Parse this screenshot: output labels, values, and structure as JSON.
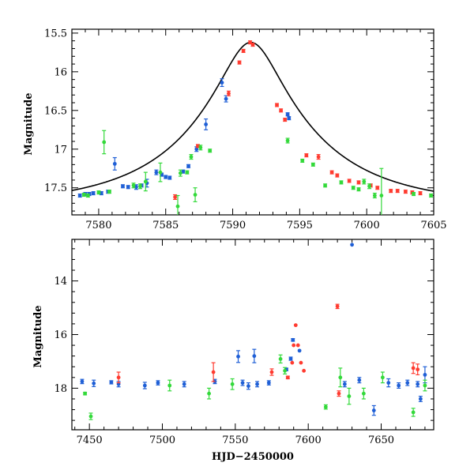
{
  "chart_data": [
    {
      "type": "scatter",
      "title": "",
      "xlabel": "",
      "ylabel": "Magnitude",
      "xlim": [
        7578,
        7605
      ],
      "ylim": [
        17.85,
        15.45
      ],
      "y_inverted": true,
      "xticks": [
        7580,
        7585,
        7590,
        7595,
        7600,
        7605
      ],
      "yticks": [
        15.5,
        16,
        16.5,
        17,
        17.5
      ],
      "xtick_labels": [
        "7580",
        "7585",
        "7590",
        "7595",
        "7600",
        "7605"
      ],
      "ytick_labels": [
        "15.5",
        "16",
        "16.5",
        "17",
        "17.5"
      ],
      "grid": false,
      "series": [
        {
          "color": "#1f5fd6",
          "points": [
            [
              7578.6,
              17.6,
              0.02
            ],
            [
              7579.0,
              17.58,
              0.02
            ],
            [
              7579.3,
              17.58,
              0.02
            ],
            [
              7579.6,
              17.57,
              0.02
            ],
            [
              7580.2,
              17.57,
              0.02
            ],
            [
              7580.7,
              17.55,
              0.02
            ],
            [
              7581.2,
              17.19,
              0.08
            ],
            [
              7581.8,
              17.48,
              0.02
            ],
            [
              7582.2,
              17.49,
              0.02
            ],
            [
              7582.8,
              17.49,
              0.03
            ],
            [
              7583.2,
              17.47,
              0.02
            ],
            [
              7583.6,
              17.44,
              0.05
            ],
            [
              7584.3,
              17.3,
              0.03
            ],
            [
              7584.7,
              17.33,
              0.02
            ],
            [
              7585.0,
              17.36,
              0.02
            ],
            [
              7585.3,
              17.37,
              0.02
            ],
            [
              7586.3,
              17.29,
              0.02
            ],
            [
              7586.7,
              17.22,
              0.02
            ],
            [
              7587.3,
              17.0,
              0.03
            ],
            [
              7588.0,
              16.68,
              0.07
            ],
            [
              7589.2,
              16.14,
              0.05
            ],
            [
              7589.5,
              16.35,
              0.04
            ],
            [
              7594.1,
              16.55,
              0.02
            ],
            [
              7594.2,
              16.6,
              0.02
            ]
          ]
        },
        {
          "color": "#ff3b30",
          "points": [
            [
              7585.7,
              17.62,
              0.03
            ],
            [
              7587.4,
              16.96,
              0.02
            ],
            [
              7589.7,
              16.28,
              0.03
            ],
            [
              7590.5,
              15.88,
              0.02
            ],
            [
              7590.8,
              15.73,
              0.02
            ],
            [
              7591.3,
              15.62,
              0.02
            ],
            [
              7591.5,
              15.65,
              0.02
            ],
            [
              7593.3,
              16.43,
              0.02
            ],
            [
              7593.6,
              16.5,
              0.02
            ],
            [
              7593.9,
              16.62,
              0.02
            ],
            [
              7595.5,
              17.08,
              0.02
            ],
            [
              7596.4,
              17.1,
              0.03
            ],
            [
              7597.4,
              17.3,
              0.02
            ],
            [
              7597.8,
              17.34,
              0.02
            ],
            [
              7598.7,
              17.41,
              0.02
            ],
            [
              7599.4,
              17.43,
              0.02
            ],
            [
              7600.3,
              17.47,
              0.02
            ],
            [
              7600.8,
              17.5,
              0.02
            ],
            [
              7601.8,
              17.54,
              0.02
            ],
            [
              7602.3,
              17.54,
              0.02
            ],
            [
              7602.9,
              17.55,
              0.02
            ],
            [
              7603.4,
              17.56,
              0.02
            ],
            [
              7604.0,
              17.57,
              0.02
            ]
          ]
        },
        {
          "color": "#33d93a",
          "points": [
            [
              7578.9,
              17.59,
              0.02
            ],
            [
              7579.2,
              17.6,
              0.02
            ],
            [
              7580.0,
              17.56,
              0.02
            ],
            [
              7580.4,
              16.91,
              0.15
            ],
            [
              7580.8,
              17.55,
              0.02
            ],
            [
              7582.6,
              17.47,
              0.03
            ],
            [
              7583.1,
              17.48,
              0.03
            ],
            [
              7583.5,
              17.42,
              0.12
            ],
            [
              7584.6,
              17.3,
              0.12
            ],
            [
              7585.9,
              17.74,
              0.14
            ],
            [
              7586.1,
              17.31,
              0.04
            ],
            [
              7586.6,
              17.3,
              0.02
            ],
            [
              7586.9,
              17.1,
              0.03
            ],
            [
              7587.2,
              17.59,
              0.09
            ],
            [
              7587.6,
              16.98,
              0.03
            ],
            [
              7588.3,
              17.02,
              0.02
            ],
            [
              7594.1,
              16.89,
              0.03
            ],
            [
              7595.2,
              17.15,
              0.02
            ],
            [
              7596.0,
              17.2,
              0.02
            ],
            [
              7596.9,
              17.47,
              0.02
            ],
            [
              7598.1,
              17.43,
              0.02
            ],
            [
              7599.0,
              17.5,
              0.02
            ],
            [
              7599.4,
              17.52,
              0.02
            ],
            [
              7599.8,
              17.42,
              0.03
            ],
            [
              7600.2,
              17.48,
              0.03
            ],
            [
              7600.6,
              17.6,
              0.03
            ],
            [
              7601.1,
              17.6,
              0.35
            ],
            [
              7603.5,
              17.58,
              0.02
            ],
            [
              7604.8,
              17.6,
              0.02
            ]
          ]
        }
      ],
      "model_curve": {
        "t0": 7591.35,
        "peak": 15.62,
        "base": 17.73,
        "u0": 0.22,
        "tE": 9.5,
        "color": "#000000"
      }
    },
    {
      "type": "scatter",
      "title": "",
      "xlabel": "HJD−2450000",
      "ylabel": "Magnitude",
      "xlim": [
        7438,
        7686
      ],
      "ylim": [
        19.55,
        12.45
      ],
      "y_inverted": true,
      "xticks": [
        7450,
        7500,
        7550,
        7600,
        7650
      ],
      "yticks": [
        14,
        16,
        18
      ],
      "xtick_labels": [
        "7450",
        "7500",
        "7550",
        "7600",
        "7650"
      ],
      "ytick_labels": [
        "14",
        "16",
        "18"
      ],
      "grid": false,
      "series": [
        {
          "color": "#1f5fd6",
          "points": [
            [
              7445,
              17.75,
              0.08
            ],
            [
              7453,
              17.82,
              0.12
            ],
            [
              7465,
              17.78,
              0.06
            ],
            [
              7470,
              17.85,
              0.1
            ],
            [
              7488,
              17.9,
              0.12
            ],
            [
              7497,
              17.8,
              0.08
            ],
            [
              7515,
              17.85,
              0.1
            ],
            [
              7536,
              17.75,
              0.08
            ],
            [
              7552,
              16.82,
              0.22
            ],
            [
              7555,
              17.8,
              0.1
            ],
            [
              7559,
              17.92,
              0.12
            ],
            [
              7563,
              16.8,
              0.25
            ],
            [
              7565,
              17.85,
              0.1
            ],
            [
              7573,
              17.8,
              0.08
            ],
            [
              7585,
              17.3,
              0.05
            ],
            [
              7588,
              16.9,
              0.06
            ],
            [
              7589.5,
              16.2,
              0.05
            ],
            [
              7594,
              16.6,
              0.03
            ],
            [
              7625,
              17.85,
              0.1
            ],
            [
              7630,
              12.65,
              0.03
            ],
            [
              7635,
              17.7,
              0.1
            ],
            [
              7645,
              18.83,
              0.18
            ],
            [
              7655,
              17.8,
              0.15
            ],
            [
              7662,
              17.9,
              0.1
            ],
            [
              7668,
              17.8,
              0.1
            ],
            [
              7675,
              17.85,
              0.1
            ],
            [
              7677,
              18.4,
              0.1
            ],
            [
              7680,
              17.5,
              0.3
            ]
          ]
        },
        {
          "color": "#ff3b30",
          "points": [
            [
              7470,
              17.6,
              0.2
            ],
            [
              7535,
              17.4,
              0.35
            ],
            [
              7575,
              17.4,
              0.12
            ],
            [
              7586,
              17.6,
              0.05
            ],
            [
              7589,
              17.05,
              0.04
            ],
            [
              7590,
              16.4,
              0.03
            ],
            [
              7591.4,
              15.65,
              0.03
            ],
            [
              7593,
              16.4,
              0.03
            ],
            [
              7595,
              17.05,
              0.03
            ],
            [
              7597,
              17.35,
              0.03
            ],
            [
              7620,
              14.95,
              0.08
            ],
            [
              7621,
              18.2,
              0.1
            ],
            [
              7672,
              17.25,
              0.2
            ],
            [
              7675,
              17.3,
              0.2
            ]
          ]
        },
        {
          "color": "#33d93a",
          "points": [
            [
              7447,
              18.2,
              0.05
            ],
            [
              7451,
              19.05,
              0.12
            ],
            [
              7505,
              17.9,
              0.2
            ],
            [
              7532,
              18.2,
              0.2
            ],
            [
              7548,
              17.85,
              0.2
            ],
            [
              7581,
              16.91,
              0.15
            ],
            [
              7584,
              17.35,
              0.12
            ],
            [
              7612,
              18.7,
              0.08
            ],
            [
              7622,
              17.6,
              0.35
            ],
            [
              7628,
              18.3,
              0.3
            ],
            [
              7638,
              18.2,
              0.2
            ],
            [
              7651,
              17.6,
              0.2
            ],
            [
              7672,
              18.9,
              0.15
            ],
            [
              7680,
              17.9,
              0.2
            ]
          ]
        }
      ]
    }
  ]
}
